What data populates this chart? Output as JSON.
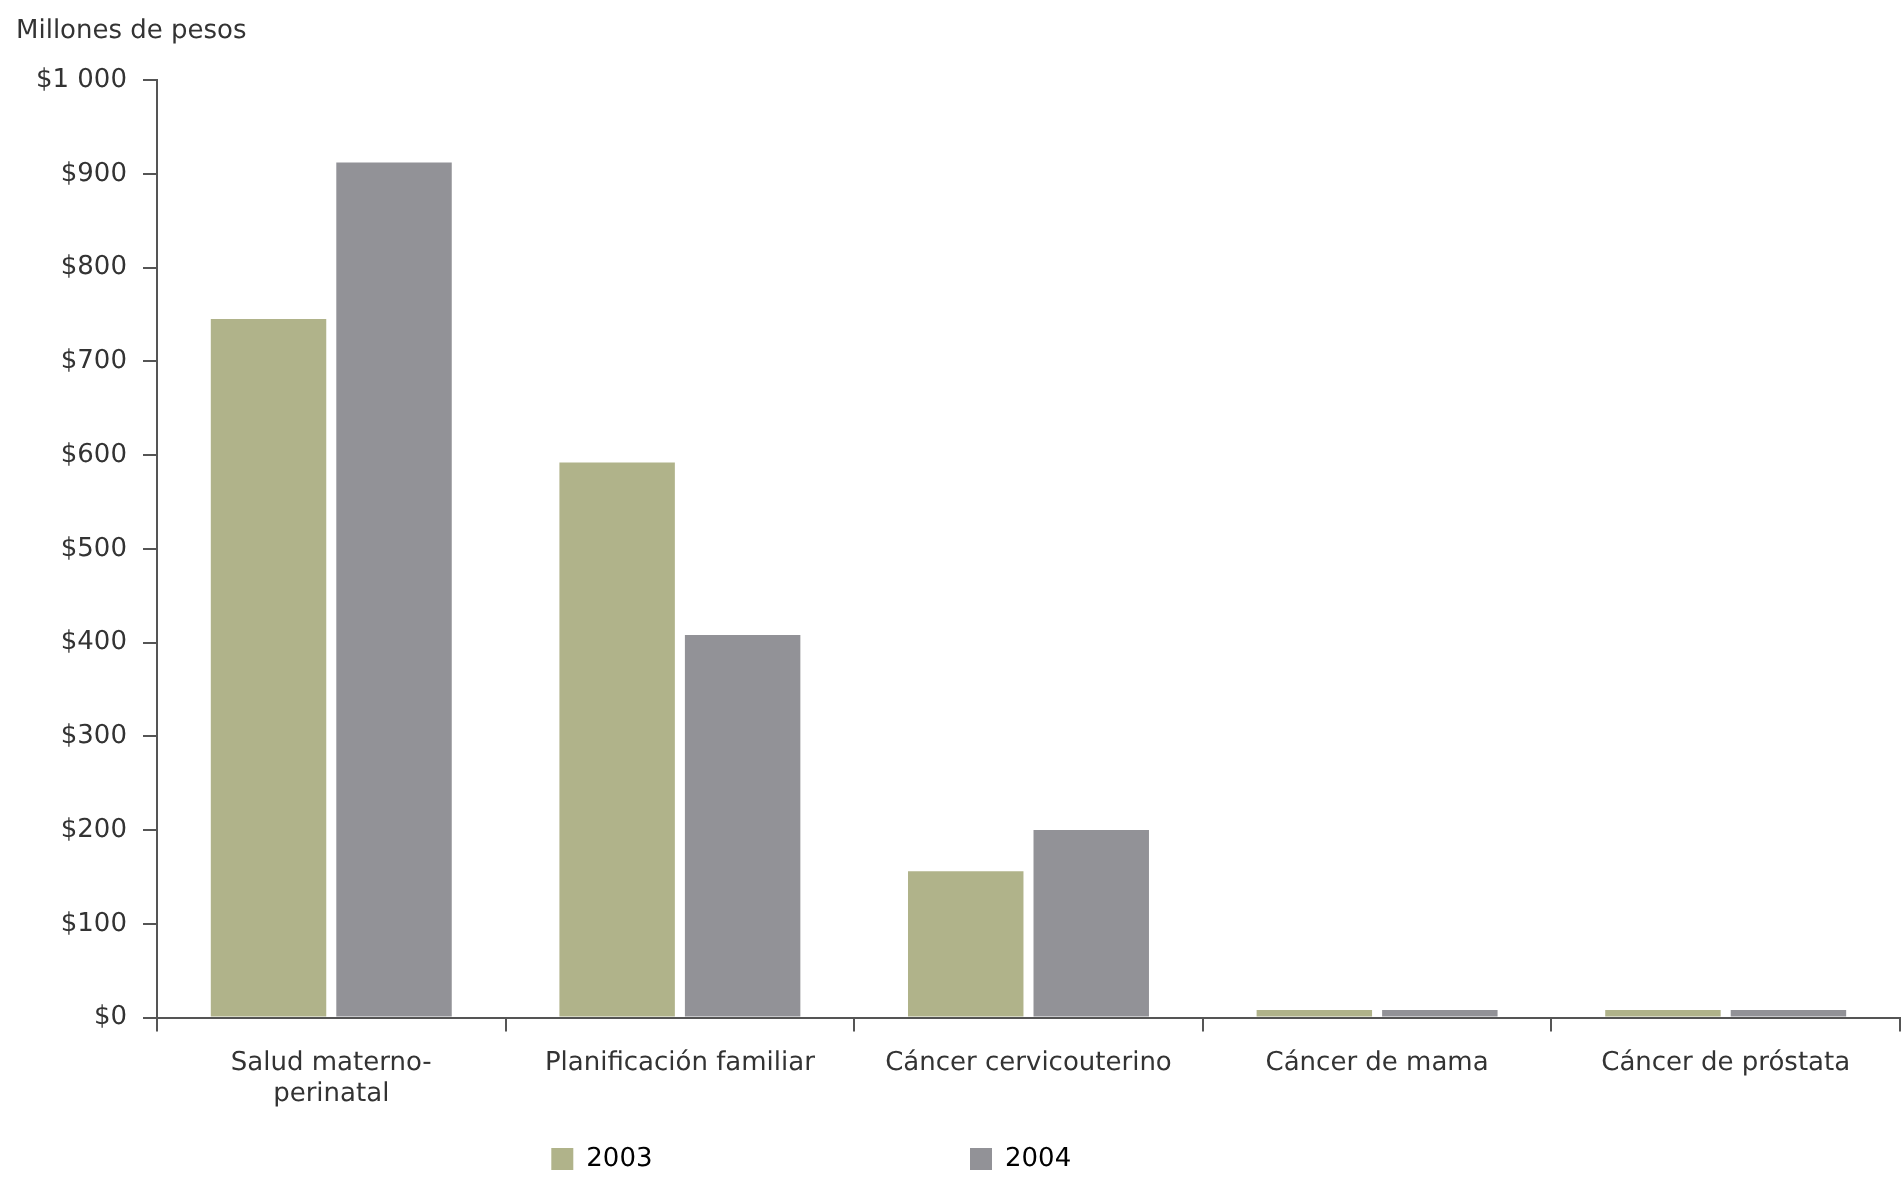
{
  "chart_data": {
    "type": "bar",
    "ylabel": "Millones de pesos",
    "categories": [
      "Salud materno-perinatal",
      "Planificación familiar",
      "Cáncer cervicouterino",
      "Cáncer de mama",
      "Cáncer de próstata"
    ],
    "series": [
      {
        "name": "2003",
        "color": "#b0b38a",
        "values": [
          745,
          592,
          156,
          8,
          8
        ]
      },
      {
        "name": "2004",
        "color": "#929297",
        "values": [
          912,
          408,
          200,
          8,
          8
        ]
      }
    ],
    "ylim": [
      0,
      1000
    ],
    "yticks": [
      {
        "value": 0,
        "label": "$0"
      },
      {
        "value": 100,
        "label": "$100"
      },
      {
        "value": 200,
        "label": "$200"
      },
      {
        "value": 300,
        "label": "$300"
      },
      {
        "value": 400,
        "label": "$400"
      },
      {
        "value": 500,
        "label": "$500"
      },
      {
        "value": 600,
        "label": "$600"
      },
      {
        "value": 700,
        "label": "$700"
      },
      {
        "value": 800,
        "label": "$800"
      },
      {
        "value": 900,
        "label": "$900"
      },
      {
        "value": 1000,
        "label": "$1 000"
      }
    ],
    "grid": false,
    "legend": "bottom"
  }
}
